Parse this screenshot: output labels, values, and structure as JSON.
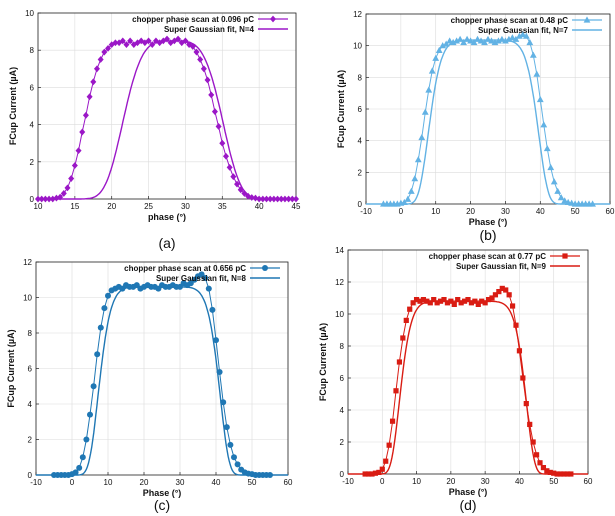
{
  "chart_data": [
    {
      "type": "scatter",
      "panel_label": "(a)",
      "xlabel": "phase (°)",
      "ylabel": "FCup Current (µA)",
      "xlim": [
        10,
        45
      ],
      "ylim": [
        0,
        10
      ],
      "xticks": [
        10,
        15,
        20,
        25,
        30,
        35,
        40,
        45
      ],
      "yticks": [
        0,
        2,
        4,
        6,
        8,
        10
      ],
      "grid": true,
      "legend_position": "top-right",
      "color": "#9b17c7",
      "marker": "diamond",
      "series": [
        {
          "name": "chopper phase scan at 0.096 pC",
          "x": [
            10.0,
            10.5,
            11.0,
            11.5,
            12.0,
            12.5,
            13.0,
            13.5,
            14.0,
            14.5,
            15.0,
            15.5,
            16.0,
            16.5,
            17.0,
            17.5,
            18.0,
            18.5,
            19.0,
            19.5,
            20.0,
            20.5,
            21.0,
            21.5,
            22.0,
            22.5,
            23.0,
            23.5,
            24.0,
            24.5,
            25.0,
            25.5,
            26.0,
            26.5,
            27.0,
            27.5,
            28.0,
            28.5,
            29.0,
            29.5,
            30.0,
            30.5,
            31.0,
            31.5,
            32.0,
            32.5,
            33.0,
            33.5,
            34.0,
            34.5,
            35.0,
            35.5,
            36.0,
            36.5,
            37.0,
            37.5,
            38.0,
            38.5,
            39.0,
            39.5,
            40.0,
            40.5,
            41.0,
            41.5,
            42.0,
            42.5,
            43.0,
            43.5,
            44.0,
            44.5,
            45.0
          ],
          "y": [
            0.0,
            0.0,
            0.0,
            0.0,
            0.0,
            0.05,
            0.1,
            0.3,
            0.6,
            1.1,
            1.8,
            2.6,
            3.6,
            4.5,
            5.5,
            6.3,
            7.0,
            7.5,
            7.9,
            8.1,
            8.3,
            8.4,
            8.4,
            8.5,
            8.3,
            8.5,
            8.3,
            8.4,
            8.5,
            8.4,
            8.5,
            8.3,
            8.5,
            8.4,
            8.5,
            8.6,
            8.4,
            8.5,
            8.6,
            8.4,
            8.5,
            8.3,
            8.2,
            7.9,
            7.5,
            7.0,
            6.4,
            5.6,
            4.7,
            3.9,
            3.0,
            2.3,
            1.7,
            1.2,
            0.8,
            0.5,
            0.3,
            0.15,
            0.08,
            0.05,
            0.0,
            0.0,
            0.0,
            0.0,
            0.0,
            0.0,
            0.0,
            0.0,
            0.0,
            0.0,
            0.0
          ]
        },
        {
          "name": "Super Gaussian fit, N=4",
          "fit": {
            "center": 28.3,
            "sigma": 8.0,
            "order": 4,
            "amplitude": 8.5
          }
        }
      ]
    },
    {
      "type": "scatter",
      "panel_label": "(b)",
      "xlabel": "Phase (°)",
      "ylabel": "FCup Current (µA)",
      "xlim": [
        -10,
        60
      ],
      "ylim": [
        0,
        12
      ],
      "xticks": [
        -10,
        0,
        10,
        20,
        30,
        40,
        50,
        60
      ],
      "yticks": [
        0,
        2,
        4,
        6,
        8,
        10,
        12
      ],
      "grid": true,
      "legend_position": "top-right",
      "color": "#62b2e4",
      "marker": "triangle",
      "series": [
        {
          "name": "chopper phase scan at 0.48 pC",
          "x": [
            -5,
            -4,
            -3,
            -2,
            -1,
            0,
            1,
            2,
            3,
            4,
            5,
            6,
            7,
            8,
            9,
            10,
            11,
            12,
            13,
            14,
            15,
            16,
            17,
            18,
            19,
            20,
            21,
            22,
            23,
            24,
            25,
            26,
            27,
            28,
            29,
            30,
            31,
            32,
            33,
            34,
            35,
            36,
            37,
            38,
            39,
            40,
            41,
            42,
            43,
            44,
            45,
            46,
            47,
            48,
            49,
            50,
            51,
            52,
            53,
            54,
            55
          ],
          "y": [
            0.0,
            0.0,
            0.0,
            0.0,
            0.0,
            0.05,
            0.1,
            0.3,
            0.8,
            1.6,
            2.8,
            4.2,
            5.8,
            7.2,
            8.4,
            9.2,
            9.7,
            10.0,
            10.1,
            10.3,
            10.2,
            10.3,
            10.4,
            10.2,
            10.4,
            10.3,
            10.2,
            10.4,
            10.3,
            10.2,
            10.4,
            10.3,
            10.2,
            10.3,
            10.4,
            10.3,
            10.4,
            10.5,
            10.4,
            10.6,
            10.7,
            10.6,
            10.2,
            9.4,
            8.2,
            6.6,
            5.0,
            3.5,
            2.3,
            1.4,
            0.8,
            0.4,
            0.2,
            0.1,
            0.05,
            0.0,
            0.0,
            0.0,
            0.0,
            0.0,
            0.0
          ]
        },
        {
          "name": "Super Gaussian fit, N=7",
          "fit": {
            "center": 23.7,
            "sigma": 17.0,
            "order": 7,
            "amplitude": 10.35
          }
        }
      ]
    },
    {
      "type": "scatter",
      "panel_label": "(c)",
      "xlabel": "Phase (°)",
      "ylabel": "FCup Current (µA)",
      "xlim": [
        -10,
        60
      ],
      "ylim": [
        0,
        12
      ],
      "xticks": [
        -10,
        0,
        10,
        20,
        30,
        40,
        50,
        60
      ],
      "yticks": [
        0,
        2,
        4,
        6,
        8,
        10,
        12
      ],
      "grid": true,
      "legend_position": "top-right",
      "color": "#1f77b4",
      "marker": "circle",
      "series": [
        {
          "name": "chopper phase scan at 0.656 pC",
          "x": [
            -5,
            -4,
            -3,
            -2,
            -1,
            0,
            1,
            2,
            3,
            4,
            5,
            6,
            7,
            8,
            9,
            10,
            11,
            12,
            13,
            14,
            15,
            16,
            17,
            18,
            19,
            20,
            21,
            22,
            23,
            24,
            25,
            26,
            27,
            28,
            29,
            30,
            31,
            32,
            33,
            34,
            35,
            36,
            37,
            38,
            39,
            40,
            41,
            42,
            43,
            44,
            45,
            46,
            47,
            48,
            49,
            50,
            51,
            52,
            53,
            54,
            55
          ],
          "y": [
            0.0,
            0.0,
            0.0,
            0.0,
            0.0,
            0.05,
            0.15,
            0.4,
            1.0,
            2.0,
            3.4,
            5.0,
            6.8,
            8.3,
            9.4,
            10.1,
            10.4,
            10.5,
            10.6,
            10.5,
            10.7,
            10.6,
            10.6,
            10.7,
            10.5,
            10.6,
            10.7,
            10.6,
            10.6,
            10.5,
            10.7,
            10.6,
            10.6,
            10.7,
            10.6,
            10.6,
            10.8,
            10.7,
            10.8,
            11.0,
            11.2,
            11.3,
            11.1,
            10.5,
            9.3,
            7.6,
            5.8,
            4.1,
            2.7,
            1.7,
            1.0,
            0.6,
            0.3,
            0.15,
            0.08,
            0.05,
            0.0,
            0.0,
            0.0,
            0.0,
            0.0
          ]
        },
        {
          "name": "Super Gaussian fit, N=8",
          "fit": {
            "center": 24.2,
            "sigma": 18.0,
            "order": 8,
            "amplitude": 10.6
          }
        }
      ]
    },
    {
      "type": "scatter",
      "panel_label": "(d)",
      "xlabel": "Phase (°)",
      "ylabel": "FCup Current (µA)",
      "xlim": [
        -10,
        60
      ],
      "ylim": [
        0,
        14
      ],
      "xticks": [
        -10,
        0,
        10,
        20,
        30,
        40,
        50,
        60
      ],
      "yticks": [
        0,
        2,
        4,
        6,
        8,
        10,
        12,
        14
      ],
      "grid": true,
      "legend_position": "top-right",
      "color": "#d91c13",
      "marker": "square",
      "series": [
        {
          "name": "chopper phase scan at 0.77 pC",
          "x": [
            -5,
            -4,
            -3,
            -2,
            -1,
            0,
            1,
            2,
            3,
            4,
            5,
            6,
            7,
            8,
            9,
            10,
            11,
            12,
            13,
            14,
            15,
            16,
            17,
            18,
            19,
            20,
            21,
            22,
            23,
            24,
            25,
            26,
            27,
            28,
            29,
            30,
            31,
            32,
            33,
            34,
            35,
            36,
            37,
            38,
            39,
            40,
            41,
            42,
            43,
            44,
            45,
            46,
            47,
            48,
            49,
            50,
            51,
            52,
            53,
            54,
            55
          ],
          "y": [
            0.0,
            0.0,
            0.0,
            0.05,
            0.1,
            0.3,
            0.8,
            1.8,
            3.3,
            5.2,
            7.0,
            8.5,
            9.6,
            10.3,
            10.7,
            10.9,
            10.8,
            10.9,
            10.8,
            10.7,
            10.9,
            10.7,
            10.8,
            10.9,
            10.7,
            10.8,
            10.6,
            10.9,
            10.7,
            10.8,
            10.9,
            10.7,
            10.8,
            10.6,
            10.8,
            10.7,
            10.9,
            11.0,
            11.2,
            11.4,
            11.6,
            11.5,
            11.2,
            10.5,
            9.3,
            7.7,
            6.0,
            4.4,
            3.1,
            2.0,
            1.2,
            0.7,
            0.4,
            0.2,
            0.1,
            0.05,
            0.0,
            0.0,
            0.0,
            0.0,
            0.0
          ]
        },
        {
          "name": "Super Gaussian fit, N=9",
          "fit": {
            "center": 23.5,
            "sigma": 19.5,
            "order": 9,
            "amplitude": 10.8
          }
        }
      ]
    }
  ]
}
